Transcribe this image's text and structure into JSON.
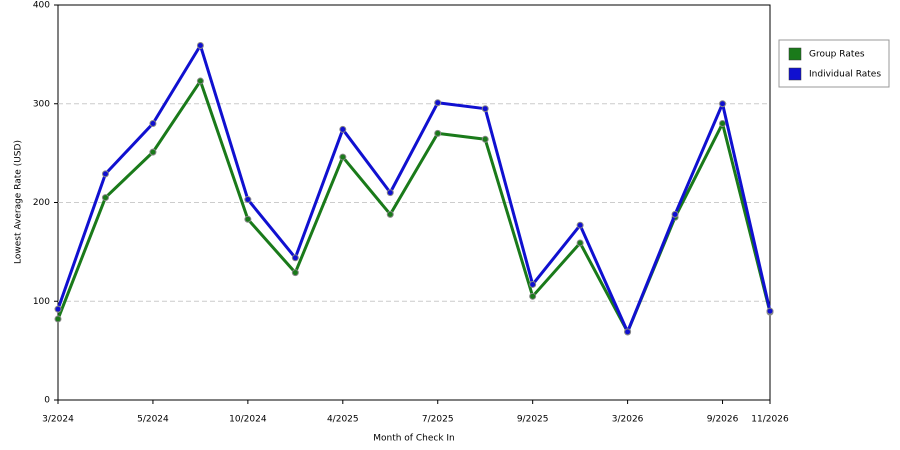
{
  "chart_data": {
    "type": "line",
    "x_label": "Month of Check In",
    "y_label": "Lowest Average Rate (USD)",
    "categories": [
      "3/2024",
      null,
      "5/2024",
      null,
      "10/2024",
      null,
      "4/2025",
      null,
      "7/2025",
      null,
      "9/2025",
      null,
      "3/2026",
      null,
      "9/2026",
      "11/2026"
    ],
    "series": [
      {
        "name": "Group Rates",
        "color": "#1a7a1a",
        "values": [
          82,
          205,
          251,
          323,
          183,
          129,
          246,
          188,
          270,
          264,
          105,
          159,
          69,
          185,
          280,
          89
        ]
      },
      {
        "name": "Individual Rates",
        "color": "#1010d0",
        "values": [
          92,
          229,
          280,
          359,
          203,
          144,
          274,
          210,
          301,
          295,
          117,
          177,
          69,
          188,
          300,
          90
        ]
      }
    ],
    "ylim": [
      0,
      400
    ],
    "yticks": [
      0,
      100,
      200,
      300,
      400
    ],
    "grid": true,
    "legend": "right"
  }
}
